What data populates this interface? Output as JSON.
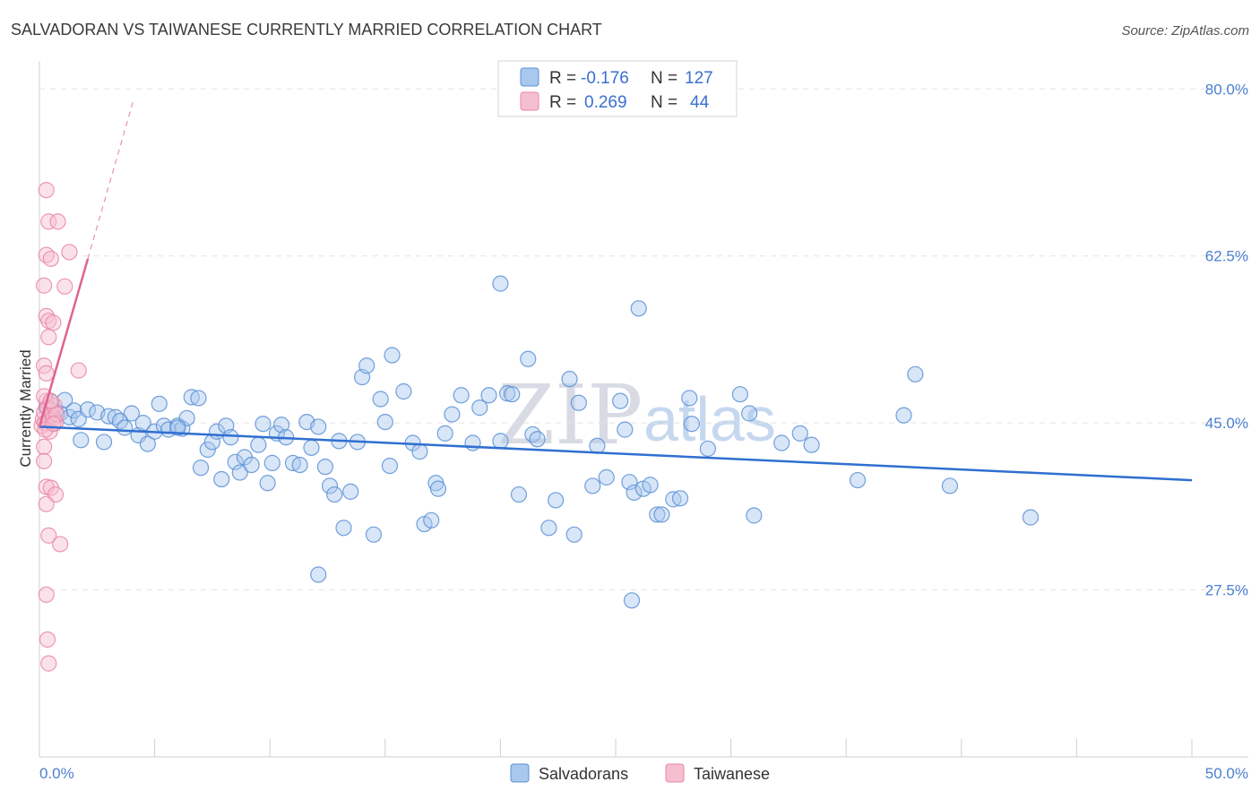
{
  "chart_data": {
    "type": "scatter",
    "title": "SALVADORAN VS TAIWANESE CURRENTLY MARRIED CORRELATION CHART",
    "source": "Source: ZipAtlas.com",
    "ylabel": "Currently Married",
    "xlim": [
      0,
      50
    ],
    "ylim": [
      10,
      82
    ],
    "x_tick_labels": [
      "0.0%",
      "50.0%"
    ],
    "y_ticks": [
      27.5,
      45.0,
      62.5,
      80.0
    ],
    "y_tick_labels": [
      "27.5%",
      "45.0%",
      "62.5%",
      "80.0%"
    ],
    "grid": true,
    "watermark": {
      "zip": "ZIP",
      "atlas": "atlas"
    },
    "legend": {
      "placement": "top-center",
      "entries": [
        {
          "r_label": "R =",
          "r_value": "-0.176",
          "n_label": "N =",
          "n_value": "127"
        },
        {
          "r_label": "R =",
          "r_value": "0.269",
          "n_label": "N =",
          "n_value": "44"
        }
      ]
    },
    "bottom_legend": [
      "Salvadorans",
      "Taiwanese"
    ],
    "colors": {
      "salvadoran_fill": "#a9c8ee",
      "salvadoran_stroke": "#5b8fd6",
      "salvadoran_line": "#2f6fd0",
      "taiwanese_fill": "#f6bfd0",
      "taiwanese_stroke": "#ea86a6",
      "taiwanese_line": "#e0628f"
    },
    "series": [
      {
        "name": "Salvadorans",
        "trend": {
          "x": [
            0,
            50
          ],
          "y": [
            44.6,
            39.0
          ]
        },
        "points": [
          [
            0.3,
            46.6
          ],
          [
            0.5,
            47.2
          ],
          [
            0.7,
            46.2
          ],
          [
            0.9,
            46.0
          ],
          [
            1.1,
            47.4
          ],
          [
            1.3,
            45.6
          ],
          [
            1.5,
            46.3
          ],
          [
            1.7,
            45.4
          ],
          [
            1.8,
            43.2
          ],
          [
            2.1,
            46.4
          ],
          [
            2.5,
            46.1
          ],
          [
            2.8,
            43.0
          ],
          [
            3.0,
            45.7
          ],
          [
            3.3,
            45.6
          ],
          [
            3.5,
            45.2
          ],
          [
            3.7,
            44.5
          ],
          [
            4.0,
            46.0
          ],
          [
            4.3,
            43.7
          ],
          [
            4.5,
            45.0
          ],
          [
            4.7,
            42.8
          ],
          [
            5.0,
            44.1
          ],
          [
            5.2,
            47.0
          ],
          [
            5.4,
            44.7
          ],
          [
            5.6,
            44.3
          ],
          [
            6.0,
            44.7
          ],
          [
            6.2,
            44.4
          ],
          [
            6.4,
            45.5
          ],
          [
            6.6,
            47.7
          ],
          [
            6.9,
            47.6
          ],
          [
            7.0,
            40.3
          ],
          [
            7.3,
            42.2
          ],
          [
            7.5,
            43.0
          ],
          [
            7.7,
            44.1
          ],
          [
            7.9,
            39.1
          ],
          [
            8.1,
            44.7
          ],
          [
            8.3,
            43.5
          ],
          [
            8.5,
            40.9
          ],
          [
            8.7,
            39.8
          ],
          [
            8.9,
            41.4
          ],
          [
            9.2,
            40.6
          ],
          [
            9.5,
            42.7
          ],
          [
            9.7,
            44.9
          ],
          [
            9.9,
            38.7
          ],
          [
            10.1,
            40.8
          ],
          [
            10.3,
            43.9
          ],
          [
            10.5,
            44.8
          ],
          [
            10.7,
            43.5
          ],
          [
            11.0,
            40.8
          ],
          [
            11.3,
            40.6
          ],
          [
            11.6,
            45.1
          ],
          [
            11.8,
            42.4
          ],
          [
            12.1,
            44.6
          ],
          [
            12.4,
            40.4
          ],
          [
            12.6,
            38.4
          ],
          [
            12.8,
            37.5
          ],
          [
            13.0,
            43.1
          ],
          [
            13.2,
            34.0
          ],
          [
            13.5,
            37.8
          ],
          [
            13.8,
            43.0
          ],
          [
            14.0,
            49.8
          ],
          [
            14.2,
            51.0
          ],
          [
            14.5,
            33.3
          ],
          [
            14.8,
            47.5
          ],
          [
            15.0,
            45.1
          ],
          [
            15.2,
            40.5
          ],
          [
            15.3,
            52.1
          ],
          [
            15.8,
            48.3
          ],
          [
            16.2,
            42.9
          ],
          [
            16.5,
            42.0
          ],
          [
            16.7,
            34.4
          ],
          [
            17.0,
            34.8
          ],
          [
            17.2,
            38.7
          ],
          [
            17.3,
            38.1
          ],
          [
            17.6,
            43.9
          ],
          [
            17.9,
            45.9
          ],
          [
            18.3,
            47.9
          ],
          [
            18.8,
            42.9
          ],
          [
            19.1,
            46.6
          ],
          [
            19.5,
            47.9
          ],
          [
            20.0,
            43.1
          ],
          [
            20.3,
            48.1
          ],
          [
            20.5,
            48.0
          ],
          [
            20.8,
            37.5
          ],
          [
            21.2,
            51.7
          ],
          [
            21.4,
            43.8
          ],
          [
            21.6,
            43.3
          ],
          [
            22.1,
            34.0
          ],
          [
            22.4,
            36.9
          ],
          [
            23.0,
            49.6
          ],
          [
            23.2,
            33.3
          ],
          [
            23.4,
            47.1
          ],
          [
            24.0,
            38.4
          ],
          [
            24.2,
            42.6
          ],
          [
            24.6,
            39.3
          ],
          [
            25.2,
            47.3
          ],
          [
            25.4,
            44.3
          ],
          [
            25.6,
            38.8
          ],
          [
            25.8,
            37.7
          ],
          [
            26.0,
            57.0
          ],
          [
            25.7,
            26.4
          ],
          [
            26.2,
            38.1
          ],
          [
            26.5,
            38.5
          ],
          [
            26.8,
            35.4
          ],
          [
            27.0,
            35.4
          ],
          [
            27.5,
            37.0
          ],
          [
            27.8,
            37.1
          ],
          [
            28.2,
            47.6
          ],
          [
            28.3,
            44.9
          ],
          [
            29.0,
            42.3
          ],
          [
            30.4,
            48.0
          ],
          [
            30.8,
            46.0
          ],
          [
            31.0,
            35.3
          ],
          [
            32.2,
            42.9
          ],
          [
            33.0,
            43.9
          ],
          [
            33.5,
            42.7
          ],
          [
            35.5,
            39.0
          ],
          [
            37.5,
            45.8
          ],
          [
            38.0,
            50.1
          ],
          [
            39.5,
            38.4
          ],
          [
            43.0,
            35.1
          ],
          [
            20.0,
            59.6
          ],
          [
            12.1,
            29.1
          ],
          [
            6.0,
            44.5
          ]
        ]
      },
      {
        "name": "Taiwanese",
        "trend": {
          "x": [
            0,
            2.1
          ],
          "y": [
            44.6,
            62.2
          ]
        },
        "trend_extension": {
          "x": [
            2.1,
            4.1
          ],
          "y": [
            62.2,
            79.0
          ]
        },
        "points": [
          [
            0.1,
            44.7
          ],
          [
            0.15,
            45.4
          ],
          [
            0.2,
            46.1
          ],
          [
            0.25,
            45.0
          ],
          [
            0.3,
            47.3
          ],
          [
            0.35,
            46.6
          ],
          [
            0.4,
            45.3
          ],
          [
            0.45,
            44.1
          ],
          [
            0.5,
            46.3
          ],
          [
            0.55,
            45.8
          ],
          [
            0.6,
            45.5
          ],
          [
            0.65,
            46.8
          ],
          [
            0.7,
            45.0
          ],
          [
            0.75,
            45.9
          ],
          [
            0.3,
            69.4
          ],
          [
            0.4,
            66.1
          ],
          [
            0.8,
            66.1
          ],
          [
            0.3,
            62.6
          ],
          [
            0.5,
            62.2
          ],
          [
            1.3,
            62.9
          ],
          [
            0.2,
            59.4
          ],
          [
            1.1,
            59.3
          ],
          [
            0.3,
            56.2
          ],
          [
            0.4,
            55.7
          ],
          [
            0.6,
            55.5
          ],
          [
            0.4,
            54.0
          ],
          [
            0.2,
            51.0
          ],
          [
            0.3,
            50.2
          ],
          [
            1.7,
            50.5
          ],
          [
            0.2,
            42.5
          ],
          [
            0.2,
            41.0
          ],
          [
            0.3,
            38.3
          ],
          [
            0.5,
            38.2
          ],
          [
            0.7,
            37.5
          ],
          [
            0.3,
            36.5
          ],
          [
            0.4,
            33.2
          ],
          [
            0.9,
            32.3
          ],
          [
            0.3,
            27.0
          ],
          [
            0.35,
            22.3
          ],
          [
            0.4,
            19.8
          ],
          [
            0.2,
            47.8
          ],
          [
            0.5,
            47.3
          ],
          [
            0.25,
            44.3
          ],
          [
            0.6,
            44.9
          ]
        ]
      }
    ]
  }
}
